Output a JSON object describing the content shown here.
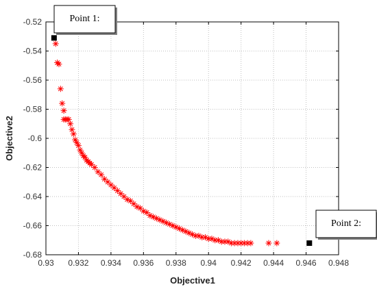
{
  "chart_data": {
    "type": "scatter",
    "xlabel": "Objective1",
    "ylabel": "Objective2",
    "xlim": [
      0.93,
      0.948
    ],
    "ylim": [
      -0.68,
      -0.52
    ],
    "grid": true,
    "x_ticks": [
      "0.93",
      "0.932",
      "0.934",
      "0.936",
      "0.938",
      "0.94",
      "0.942",
      "0.944",
      "0.946",
      "0.948"
    ],
    "y_ticks": [
      "-0.52",
      "-0.54",
      "-0.56",
      "-0.58",
      "-0.6",
      "-0.62",
      "-0.64",
      "-0.66",
      "-0.68"
    ],
    "series": [
      {
        "marker": "asterisk",
        "color": "#ff0000",
        "x": [
          0.9306,
          0.9307,
          0.9308,
          0.9309,
          0.931,
          0.9311,
          0.9311,
          0.9312,
          0.9313,
          0.9314,
          0.9315,
          0.9316,
          0.9317,
          0.9318,
          0.9319,
          0.932,
          0.9321,
          0.9322,
          0.9323,
          0.9324,
          0.9325,
          0.9326,
          0.9327,
          0.9328,
          0.933,
          0.9332,
          0.9334,
          0.9336,
          0.9338,
          0.934,
          0.9342,
          0.9344,
          0.9346,
          0.9348,
          0.935,
          0.9352,
          0.9354,
          0.9356,
          0.9358,
          0.936,
          0.9362,
          0.9364,
          0.9366,
          0.9368,
          0.937,
          0.9372,
          0.9374,
          0.9376,
          0.9378,
          0.938,
          0.9382,
          0.9384,
          0.9386,
          0.9388,
          0.939,
          0.9392,
          0.9394,
          0.9396,
          0.9398,
          0.94,
          0.9402,
          0.9404,
          0.9406,
          0.9408,
          0.941,
          0.9412,
          0.9414,
          0.9416,
          0.9418,
          0.942,
          0.9422,
          0.9424,
          0.9426,
          0.9437,
          0.9442
        ],
        "y": [
          -0.535,
          -0.548,
          -0.549,
          -0.566,
          -0.576,
          -0.581,
          -0.587,
          -0.587,
          -0.587,
          -0.587,
          -0.59,
          -0.594,
          -0.597,
          -0.601,
          -0.603,
          -0.605,
          -0.608,
          -0.61,
          -0.612,
          -0.613,
          -0.615,
          -0.616,
          -0.617,
          -0.618,
          -0.62,
          -0.623,
          -0.625,
          -0.628,
          -0.63,
          -0.632,
          -0.634,
          -0.636,
          -0.638,
          -0.64,
          -0.642,
          -0.643,
          -0.645,
          -0.647,
          -0.648,
          -0.65,
          -0.651,
          -0.653,
          -0.654,
          -0.655,
          -0.656,
          -0.657,
          -0.658,
          -0.659,
          -0.66,
          -0.661,
          -0.662,
          -0.663,
          -0.664,
          -0.665,
          -0.666,
          -0.667,
          -0.667,
          -0.668,
          -0.668,
          -0.669,
          -0.669,
          -0.67,
          -0.67,
          -0.671,
          -0.671,
          -0.671,
          -0.672,
          -0.672,
          -0.672,
          -0.672,
          -0.672,
          -0.672,
          -0.672,
          -0.672,
          -0.672
        ]
      },
      {
        "marker": "square",
        "color": "#000000",
        "x": [
          0.9305,
          0.9462
        ],
        "y": [
          -0.531,
          -0.672
        ]
      }
    ],
    "annotations": [
      {
        "text": "Point 1:",
        "x": 0.9305,
        "y": -0.531
      },
      {
        "text": "Point 2:",
        "x": 0.9462,
        "y": -0.672
      }
    ]
  }
}
